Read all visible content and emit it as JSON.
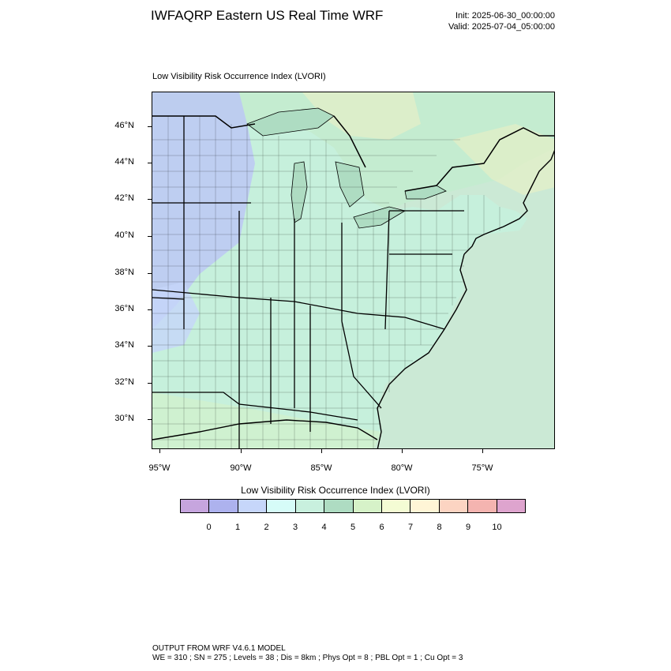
{
  "header": {
    "title": "IWFAQRP Eastern US Real Time WRF",
    "init": "Init: 2025-06-30_00:00:00",
    "valid": "Valid: 2025-07-04_05:00:00"
  },
  "plot": {
    "title": "Low Visibility Risk Occurrence Index   (LVORI)"
  },
  "axes": {
    "lat_labels": [
      "46°N",
      "44°N",
      "42°N",
      "40°N",
      "38°N",
      "36°N",
      "34°N",
      "32°N",
      "30°N"
    ],
    "lon_labels": [
      "95°W",
      "90°W",
      "85°W",
      "80°W",
      "75°W"
    ]
  },
  "colorbar": {
    "title": "Low Visibility Risk Occurrence Index  (LVORI)",
    "colors": [
      "#c6a5de",
      "#adb2ee",
      "#c6d6fa",
      "#d6fcf8",
      "#c8f0de",
      "#aedcc2",
      "#d6f2c8",
      "#f4fcd4",
      "#fff5d6",
      "#fcd4c2",
      "#f4b4b0",
      "#dea4ce"
    ],
    "labels": [
      "0",
      "1",
      "2",
      "3",
      "4",
      "5",
      "6",
      "7",
      "8",
      "9",
      "10"
    ]
  },
  "footer": {
    "line1": "OUTPUT FROM WRF V4.6.1 MODEL",
    "line2": "WE = 310 ; SN = 275 ; Levels = 38 ; Dis = 8km ; Phys Opt = 8 ; PBL Opt = 1 ; Cu Opt = 3"
  }
}
